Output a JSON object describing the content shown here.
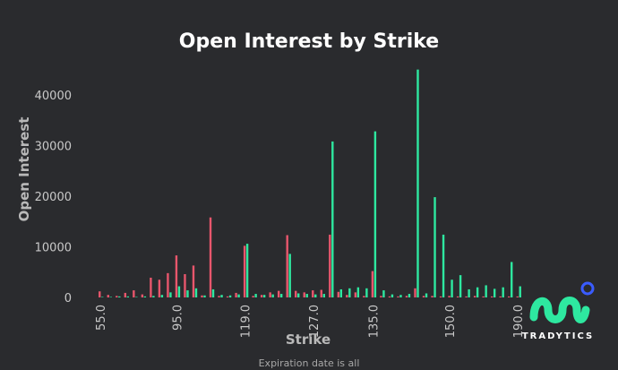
{
  "chart_data": {
    "type": "bar",
    "title": "Open Interest by Strike",
    "xlabel": "Strike",
    "ylabel": "Open Interest",
    "ylim": [
      0,
      46000
    ],
    "yticks": [
      0,
      10000,
      20000,
      30000,
      40000
    ],
    "xticks": [
      "55.0",
      "95.0",
      "119.0",
      "127.0",
      "135.0",
      "150.0",
      "190.0"
    ],
    "grid": false,
    "series": [
      {
        "color": "#e8566c",
        "points": [
          [
            0,
            1200
          ],
          [
            1,
            500
          ],
          [
            2,
            300
          ],
          [
            3,
            900
          ],
          [
            4,
            1400
          ],
          [
            5,
            600
          ],
          [
            6,
            3900
          ],
          [
            7,
            3500
          ],
          [
            8,
            4800
          ],
          [
            9,
            8300
          ],
          [
            10,
            4600
          ],
          [
            11,
            6300
          ],
          [
            12,
            400
          ],
          [
            13,
            15800
          ],
          [
            14,
            300
          ],
          [
            15,
            200
          ],
          [
            16,
            900
          ],
          [
            17,
            10200
          ],
          [
            18,
            300
          ],
          [
            19,
            500
          ],
          [
            20,
            1000
          ],
          [
            21,
            1300
          ],
          [
            22,
            12300
          ],
          [
            23,
            1300
          ],
          [
            24,
            1000
          ],
          [
            25,
            1400
          ],
          [
            26,
            1500
          ],
          [
            27,
            12400
          ],
          [
            28,
            1100
          ],
          [
            29,
            500
          ],
          [
            30,
            1000
          ],
          [
            31,
            300
          ],
          [
            32,
            5200
          ],
          [
            33,
            300
          ],
          [
            34,
            200
          ],
          [
            35,
            200
          ],
          [
            36,
            300
          ],
          [
            37,
            1800
          ],
          [
            38,
            300
          ],
          [
            39,
            300
          ],
          [
            40,
            200
          ],
          [
            41,
            300
          ],
          [
            42,
            200
          ],
          [
            43,
            200
          ],
          [
            44,
            300
          ],
          [
            45,
            200
          ],
          [
            46,
            200
          ],
          [
            47,
            200
          ],
          [
            48,
            200
          ],
          [
            49,
            200
          ]
        ]
      },
      {
        "color": "#2ee8a0",
        "points": [
          [
            0,
            100
          ],
          [
            1,
            100
          ],
          [
            2,
            200
          ],
          [
            3,
            200
          ],
          [
            4,
            100
          ],
          [
            5,
            200
          ],
          [
            6,
            300
          ],
          [
            7,
            500
          ],
          [
            8,
            1000
          ],
          [
            9,
            2200
          ],
          [
            10,
            1400
          ],
          [
            11,
            1800
          ],
          [
            12,
            400
          ],
          [
            13,
            1600
          ],
          [
            14,
            500
          ],
          [
            15,
            400
          ],
          [
            16,
            600
          ],
          [
            17,
            10600
          ],
          [
            18,
            700
          ],
          [
            19,
            500
          ],
          [
            20,
            600
          ],
          [
            21,
            700
          ],
          [
            22,
            8600
          ],
          [
            23,
            800
          ],
          [
            24,
            700
          ],
          [
            25,
            600
          ],
          [
            26,
            700
          ],
          [
            27,
            30800
          ],
          [
            28,
            1600
          ],
          [
            29,
            1800
          ],
          [
            30,
            2000
          ],
          [
            31,
            1800
          ],
          [
            32,
            32800
          ],
          [
            33,
            1400
          ],
          [
            34,
            600
          ],
          [
            35,
            500
          ],
          [
            36,
            700
          ],
          [
            37,
            45000
          ],
          [
            38,
            800
          ],
          [
            39,
            19800
          ],
          [
            40,
            12400
          ],
          [
            41,
            3500
          ],
          [
            42,
            4400
          ],
          [
            43,
            1600
          ],
          [
            44,
            2000
          ],
          [
            45,
            2400
          ],
          [
            46,
            1700
          ],
          [
            47,
            2000
          ],
          [
            48,
            7000
          ],
          [
            49,
            2200
          ]
        ]
      }
    ],
    "footer_text": "Expiration date is all"
  },
  "brand": {
    "name": "TRADYTICS",
    "accent": "#2ee8a0",
    "dot": "#3a5cff"
  }
}
